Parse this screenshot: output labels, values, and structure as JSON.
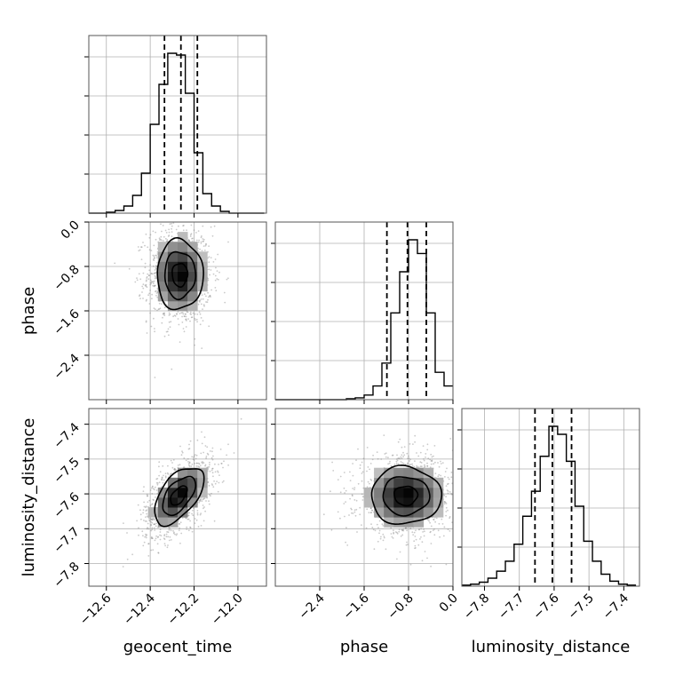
{
  "chart_data": {
    "type": "corner",
    "parameters": [
      "geocent_time",
      "phase",
      "luminosity_distance"
    ],
    "axis_labels": {
      "x": [
        "geocent_time",
        "phase",
        "luminosity_distance"
      ],
      "y": [
        "phase",
        "luminosity_distance"
      ]
    },
    "ranges": {
      "geocent_time": [
        -12.68,
        -11.87
      ],
      "phase": [
        -3.2,
        0.0
      ],
      "luminosity_distance": [
        -7.865,
        -7.355
      ]
    },
    "ticks": {
      "geocent_time": {
        "values": [
          -12.6,
          -12.4,
          -12.2,
          -12.0
        ],
        "labels": [
          "−12.6",
          "−12.4",
          "−12.2",
          "−12.0"
        ]
      },
      "phase": {
        "values": [
          -2.4,
          -1.6,
          -0.8,
          0.0
        ],
        "labels": [
          "−2.4",
          "−1.6",
          "−0.8",
          "0.0"
        ]
      },
      "luminosity_distance": {
        "values": [
          -7.8,
          -7.7,
          -7.6,
          -7.5,
          -7.4
        ],
        "labels": [
          "−7.8",
          "−7.7",
          "−7.6",
          "−7.5",
          "−7.4"
        ]
      }
    },
    "quantiles": {
      "geocent_time": [
        -12.335,
        -12.26,
        -12.185
      ],
      "phase": [
        -1.19,
        -0.82,
        -0.48
      ],
      "luminosity_distance": [
        -7.655,
        -7.605,
        -7.55
      ]
    },
    "histograms": {
      "geocent_time": {
        "edges": [
          -12.68,
          -12.64,
          -12.6,
          -12.56,
          -12.52,
          -12.48,
          -12.44,
          -12.4,
          -12.36,
          -12.32,
          -12.28,
          -12.24,
          -12.2,
          -12.16,
          -12.12,
          -12.08,
          -12.04,
          -12.0,
          -11.96,
          -11.92,
          -11.88
        ],
        "counts": [
          0,
          0,
          1,
          3,
          8,
          20,
          45,
          100,
          145,
          180,
          178,
          135,
          68,
          22,
          8,
          2,
          0,
          0,
          0,
          0
        ]
      },
      "phase": {
        "edges": [
          -3.2,
          -3.04,
          -2.88,
          -2.72,
          -2.56,
          -2.4,
          -2.24,
          -2.08,
          -1.92,
          -1.76,
          -1.6,
          -1.44,
          -1.28,
          -1.12,
          -0.96,
          -0.8,
          -0.64,
          -0.48,
          -0.32,
          -0.16,
          0.0
        ],
        "counts": [
          0,
          0,
          0,
          0,
          0,
          0,
          0,
          0,
          1,
          2,
          5,
          15,
          40,
          95,
          140,
          175,
          160,
          95,
          30,
          15
        ]
      },
      "luminosity_distance": {
        "edges": [
          -7.865,
          -7.84,
          -7.815,
          -7.79,
          -7.765,
          -7.74,
          -7.715,
          -7.69,
          -7.665,
          -7.64,
          -7.615,
          -7.59,
          -7.565,
          -7.54,
          -7.515,
          -7.49,
          -7.465,
          -7.44,
          -7.415,
          -7.39,
          -7.365
        ],
        "counts": [
          1,
          2,
          4,
          8,
          15,
          25,
          42,
          70,
          95,
          130,
          160,
          152,
          125,
          80,
          45,
          25,
          12,
          5,
          2,
          1
        ]
      }
    },
    "joint": [
      {
        "x": "geocent_time",
        "y": "phase",
        "center": [
          -12.265,
          -0.95
        ],
        "sigma": [
          0.07,
          0.42
        ],
        "rho": 0.0
      },
      {
        "x": "geocent_time",
        "y": "luminosity_distance",
        "center": [
          -12.27,
          -7.605
        ],
        "sigma": [
          0.075,
          0.055
        ],
        "rho": 0.55
      },
      {
        "x": "phase",
        "y": "luminosity_distance",
        "center": [
          -0.85,
          -7.605
        ],
        "sigma": [
          0.42,
          0.055
        ],
        "rho": 0.0
      }
    ],
    "contour_levels": [
      0.5,
      1.0,
      1.5
    ],
    "grid": true
  }
}
